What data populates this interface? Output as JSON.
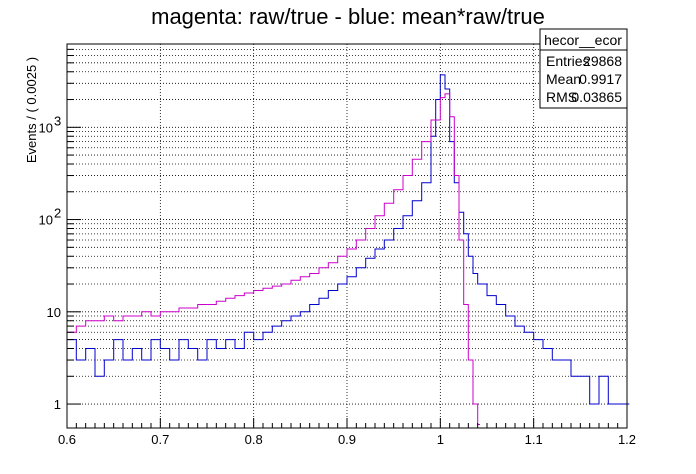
{
  "chart_data": {
    "type": "histogram",
    "title": "magenta: raw/true - blue: mean*raw/true",
    "xlabel": "",
    "ylabel": "Events / ( 0.0025 )",
    "xlim": [
      0.6,
      1.2
    ],
    "ylim": [
      0.55,
      8000
    ],
    "yscale": "log",
    "grid": true,
    "bin_width": 0.0025,
    "x_ticks": [
      "0.6",
      "0.7",
      "0.8",
      "0.9",
      "1",
      "1.1",
      "1.2"
    ],
    "y_ticks": [
      {
        "value": 1,
        "label": "1"
      },
      {
        "value": 10,
        "label": "10"
      },
      {
        "value": 100,
        "label": "10",
        "exp": "2"
      },
      {
        "value": 1000,
        "label": "10",
        "exp": "3"
      }
    ],
    "series": [
      {
        "color": "#0000cc",
        "points": [
          [
            0.6,
            5
          ],
          [
            0.61,
            3
          ],
          [
            0.62,
            4
          ],
          [
            0.63,
            2
          ],
          [
            0.64,
            3
          ],
          [
            0.65,
            5
          ],
          [
            0.66,
            3
          ],
          [
            0.67,
            4
          ],
          [
            0.68,
            3
          ],
          [
            0.69,
            5
          ],
          [
            0.7,
            4
          ],
          [
            0.71,
            3
          ],
          [
            0.72,
            5
          ],
          [
            0.73,
            4
          ],
          [
            0.74,
            3
          ],
          [
            0.75,
            5
          ],
          [
            0.76,
            4
          ],
          [
            0.77,
            5
          ],
          [
            0.78,
            4
          ],
          [
            0.79,
            6
          ],
          [
            0.8,
            5
          ],
          [
            0.81,
            6
          ],
          [
            0.82,
            7
          ],
          [
            0.83,
            8
          ],
          [
            0.84,
            9
          ],
          [
            0.85,
            10
          ],
          [
            0.86,
            12
          ],
          [
            0.87,
            14
          ],
          [
            0.88,
            17
          ],
          [
            0.89,
            20
          ],
          [
            0.9,
            24
          ],
          [
            0.91,
            30
          ],
          [
            0.92,
            38
          ],
          [
            0.93,
            48
          ],
          [
            0.94,
            60
          ],
          [
            0.95,
            80
          ],
          [
            0.96,
            110
          ],
          [
            0.97,
            160
          ],
          [
            0.98,
            250
          ],
          [
            0.99,
            800
          ],
          [
            0.995,
            2000
          ],
          [
            1.0,
            3700
          ],
          [
            1.005,
            2600
          ],
          [
            1.01,
            700
          ],
          [
            1.015,
            250
          ],
          [
            1.02,
            120
          ],
          [
            1.025,
            70
          ],
          [
            1.03,
            40
          ],
          [
            1.035,
            26
          ],
          [
            1.04,
            20
          ],
          [
            1.05,
            15
          ],
          [
            1.06,
            12
          ],
          [
            1.07,
            9
          ],
          [
            1.08,
            7
          ],
          [
            1.09,
            6
          ],
          [
            1.1,
            5
          ],
          [
            1.11,
            4
          ],
          [
            1.12,
            3
          ],
          [
            1.13,
            3
          ],
          [
            1.14,
            2
          ],
          [
            1.15,
            2
          ],
          [
            1.16,
            1
          ],
          [
            1.17,
            2
          ],
          [
            1.18,
            1
          ],
          [
            1.19,
            1
          ],
          [
            1.2,
            1
          ]
        ]
      },
      {
        "color": "#cc00cc",
        "points": [
          [
            0.6,
            6
          ],
          [
            0.61,
            7
          ],
          [
            0.62,
            8
          ],
          [
            0.63,
            8
          ],
          [
            0.64,
            9
          ],
          [
            0.65,
            8
          ],
          [
            0.66,
            9
          ],
          [
            0.67,
            9
          ],
          [
            0.68,
            10
          ],
          [
            0.69,
            9
          ],
          [
            0.7,
            10
          ],
          [
            0.71,
            10
          ],
          [
            0.72,
            11
          ],
          [
            0.73,
            11
          ],
          [
            0.74,
            12
          ],
          [
            0.75,
            12
          ],
          [
            0.76,
            13
          ],
          [
            0.77,
            14
          ],
          [
            0.78,
            15
          ],
          [
            0.79,
            16
          ],
          [
            0.8,
            17
          ],
          [
            0.81,
            18
          ],
          [
            0.82,
            19
          ],
          [
            0.83,
            20
          ],
          [
            0.84,
            22
          ],
          [
            0.85,
            24
          ],
          [
            0.86,
            26
          ],
          [
            0.87,
            30
          ],
          [
            0.88,
            34
          ],
          [
            0.89,
            40
          ],
          [
            0.9,
            48
          ],
          [
            0.91,
            60
          ],
          [
            0.92,
            80
          ],
          [
            0.93,
            110
          ],
          [
            0.94,
            150
          ],
          [
            0.95,
            210
          ],
          [
            0.96,
            300
          ],
          [
            0.97,
            450
          ],
          [
            0.98,
            700
          ],
          [
            0.99,
            1200
          ],
          [
            1.0,
            2100
          ],
          [
            1.005,
            2300
          ],
          [
            1.01,
            1300
          ],
          [
            1.015,
            300
          ],
          [
            1.02,
            60
          ],
          [
            1.025,
            12
          ],
          [
            1.03,
            3
          ],
          [
            1.035,
            1
          ],
          [
            1.04,
            0.6
          ]
        ]
      }
    ],
    "stats_box": {
      "name": "hecor__ecor",
      "rows": [
        {
          "label": "Entries",
          "value": "29868"
        },
        {
          "label": "Mean",
          "value": "0.9917"
        },
        {
          "label": "RMS",
          "value": "0.03865"
        }
      ]
    }
  }
}
